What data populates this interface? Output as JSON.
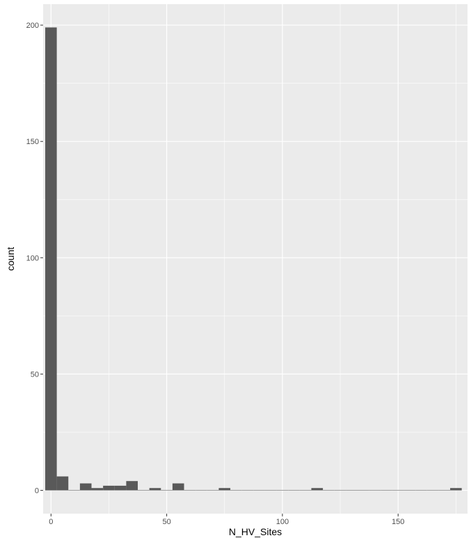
{
  "chart_data": {
    "type": "bar",
    "subtype": "histogram",
    "title": "",
    "xlabel": "N_HV_Sites",
    "ylabel": "count",
    "xlim": [
      -3.4,
      180.0
    ],
    "ylim": [
      -10.0,
      209.0
    ],
    "x_ticks": [
      0,
      50,
      100,
      150
    ],
    "x_tick_labels": [
      "0",
      "50",
      "100",
      "150"
    ],
    "y_ticks": [
      0,
      50,
      100,
      150,
      200
    ],
    "y_tick_labels": [
      "0",
      "50",
      "100",
      "150",
      "200"
    ],
    "bin_width": 5,
    "bins": [
      {
        "x": 0,
        "count": 199
      },
      {
        "x": 5,
        "count": 6
      },
      {
        "x": 10,
        "count": 0
      },
      {
        "x": 15,
        "count": 3
      },
      {
        "x": 20,
        "count": 1
      },
      {
        "x": 25,
        "count": 2
      },
      {
        "x": 30,
        "count": 2
      },
      {
        "x": 35,
        "count": 4
      },
      {
        "x": 40,
        "count": 0
      },
      {
        "x": 45,
        "count": 1
      },
      {
        "x": 50,
        "count": 0
      },
      {
        "x": 55,
        "count": 3
      },
      {
        "x": 60,
        "count": 0
      },
      {
        "x": 65,
        "count": 0
      },
      {
        "x": 70,
        "count": 0
      },
      {
        "x": 75,
        "count": 1
      },
      {
        "x": 80,
        "count": 0
      },
      {
        "x": 85,
        "count": 0
      },
      {
        "x": 90,
        "count": 0
      },
      {
        "x": 95,
        "count": 0
      },
      {
        "x": 100,
        "count": 0
      },
      {
        "x": 105,
        "count": 0
      },
      {
        "x": 110,
        "count": 0
      },
      {
        "x": 115,
        "count": 1
      },
      {
        "x": 120,
        "count": 0
      },
      {
        "x": 125,
        "count": 0
      },
      {
        "x": 130,
        "count": 0
      },
      {
        "x": 135,
        "count": 0
      },
      {
        "x": 140,
        "count": 0
      },
      {
        "x": 145,
        "count": 0
      },
      {
        "x": 150,
        "count": 0
      },
      {
        "x": 155,
        "count": 0
      },
      {
        "x": 160,
        "count": 0
      },
      {
        "x": 165,
        "count": 0
      },
      {
        "x": 170,
        "count": 0
      },
      {
        "x": 175,
        "count": 1
      }
    ],
    "grid": true,
    "legend": "none",
    "colors": {
      "panel": "#ebebeb",
      "grid_major": "#ffffff",
      "bar": "#595959",
      "tick": "#333333",
      "tick_label": "#4d4d4d"
    }
  }
}
